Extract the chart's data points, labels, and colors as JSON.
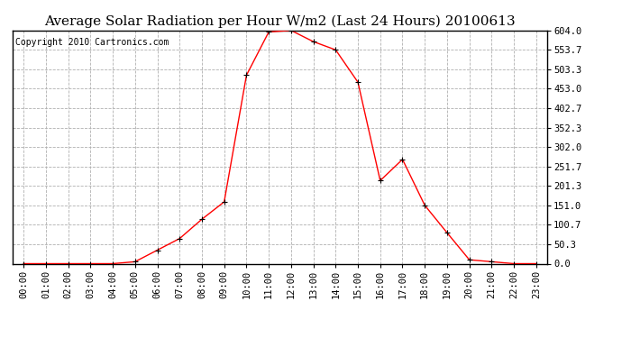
{
  "title": "Average Solar Radiation per Hour W/m2 (Last 24 Hours) 20100613",
  "copyright": "Copyright 2010 Cartronics.com",
  "hours": [
    0,
    1,
    2,
    3,
    4,
    5,
    6,
    7,
    8,
    9,
    10,
    11,
    12,
    13,
    14,
    15,
    16,
    17,
    18,
    19,
    20,
    21,
    22,
    23
  ],
  "values": [
    0.0,
    0.0,
    0.0,
    0.0,
    0.0,
    5.0,
    35.0,
    65.0,
    115.0,
    160.0,
    488.0,
    600.0,
    604.0,
    575.0,
    553.7,
    470.0,
    215.0,
    270.0,
    151.0,
    80.0,
    10.0,
    5.0,
    0.0,
    0.0
  ],
  "line_color": "#ff0000",
  "marker": "+",
  "marker_size": 4,
  "background_color": "#ffffff",
  "grid_color": "#b0b0b0",
  "ytick_labels": [
    "0.0",
    "50.3",
    "100.7",
    "151.0",
    "201.3",
    "251.7",
    "302.0",
    "352.3",
    "402.7",
    "453.0",
    "503.3",
    "553.7",
    "604.0"
  ],
  "ytick_values": [
    0.0,
    50.3,
    100.7,
    151.0,
    201.3,
    251.7,
    302.0,
    352.3,
    402.7,
    453.0,
    503.3,
    553.7,
    604.0
  ],
  "ylim": [
    0.0,
    604.0
  ],
  "title_fontsize": 11,
  "copyright_fontsize": 7,
  "tick_label_fontsize": 7.5
}
